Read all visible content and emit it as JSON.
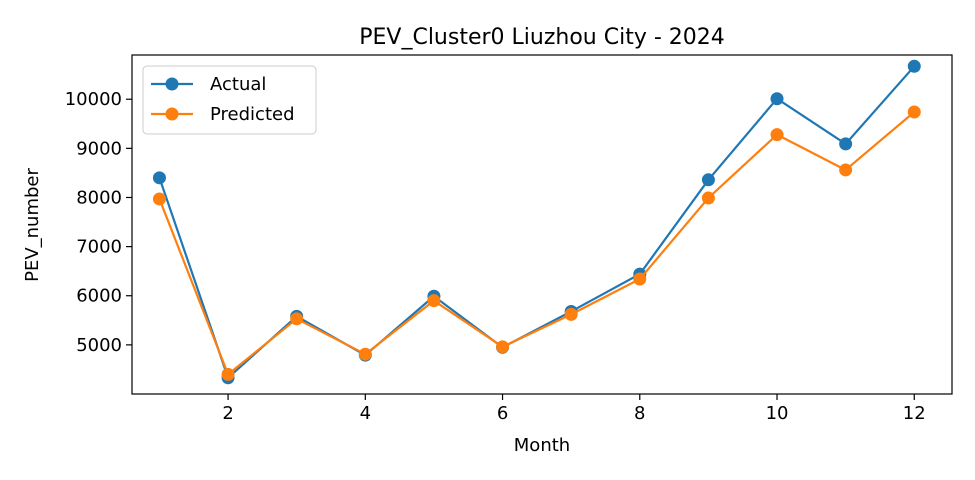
{
  "chart_data": {
    "type": "line",
    "title": "PEV_Cluster0 Liuzhou City - 2024",
    "xlabel": "Month",
    "ylabel": "PEV_number",
    "x": [
      1,
      2,
      3,
      4,
      5,
      6,
      7,
      8,
      9,
      10,
      11,
      12
    ],
    "xlim": [
      0.6,
      12.55
    ],
    "ylim": [
      4000,
      10900
    ],
    "xticks": [
      2,
      4,
      6,
      8,
      10,
      12
    ],
    "yticks": [
      5000,
      6000,
      7000,
      8000,
      9000,
      10000
    ],
    "grid": false,
    "legend_position": "upper-left",
    "series": [
      {
        "name": "Actual",
        "color": "#1f77b4",
        "marker": "circle",
        "values": [
          8400,
          4330,
          5580,
          4790,
          5990,
          4950,
          5680,
          6440,
          8360,
          10010,
          9090,
          10670
        ]
      },
      {
        "name": "Predicted",
        "color": "#ff7f0e",
        "marker": "circle",
        "values": [
          7970,
          4400,
          5530,
          4810,
          5900,
          4960,
          5620,
          6340,
          7990,
          9280,
          8560,
          9740
        ]
      }
    ]
  }
}
